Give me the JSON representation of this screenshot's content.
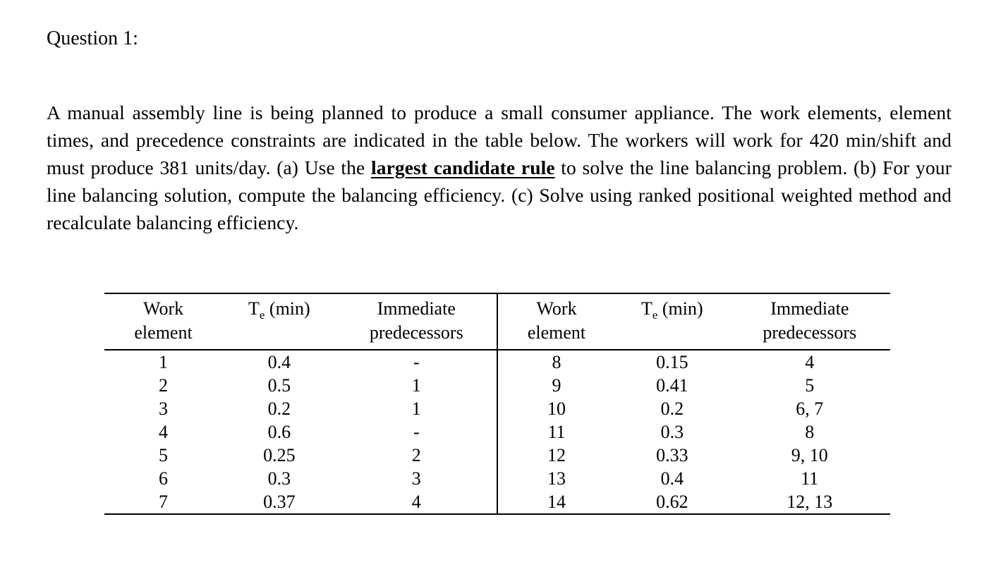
{
  "title": "Question 1:",
  "paragraph": {
    "before_bold": "A manual assembly line is being planned to produce a small consumer appliance. The work elements, element times, and precedence constraints are indicated in the table below. The workers will work for 420 min/shift and must produce 381 units/day. (a) Use the ",
    "bold_underline": "largest candidate rule",
    "after_bold": " to solve the line balancing problem. (b) For your line balancing solution, compute the balancing efficiency. (c) Solve using ranked positional weighted method and recalculate balancing efficiency."
  },
  "table": {
    "header": {
      "work_line1": "Work",
      "work_line2": "element",
      "te_prefix": "T",
      "te_sub": "e",
      "te_suffix": " (min)",
      "imm_line1": "Immediate",
      "imm_line2": "predecessors"
    },
    "rows": [
      [
        "1",
        "0.4",
        "-",
        "8",
        "0.15",
        "4"
      ],
      [
        "2",
        "0.5",
        "1",
        "9",
        "0.41",
        "5"
      ],
      [
        "3",
        "0.2",
        "1",
        "10",
        "0.2",
        "6, 7"
      ],
      [
        "4",
        "0.6",
        "-",
        "11",
        "0.3",
        "8"
      ],
      [
        "5",
        "0.25",
        "2",
        "12",
        "0.33",
        "9, 10"
      ],
      [
        "6",
        "0.3",
        "3",
        "13",
        "0.4",
        "11"
      ],
      [
        "7",
        "0.37",
        "4",
        "14",
        "0.62",
        "12, 13"
      ]
    ]
  }
}
